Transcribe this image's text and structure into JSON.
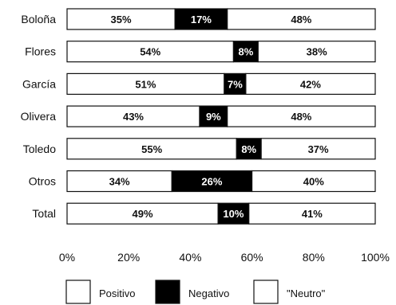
{
  "chart_data": {
    "type": "bar",
    "stacked": true,
    "orientation": "horizontal",
    "percent_stacked": true,
    "categories": [
      "Boloña",
      "Flores",
      "García",
      "Olivera",
      "Toledo",
      "Otros",
      "Total"
    ],
    "category_labels": [
      "Boloña",
      "Flores",
      "García",
      "Olivera",
      "Toledo",
      "Otros",
      "Total"
    ],
    "series": [
      {
        "name": "Positivo",
        "color": "#ffffff",
        "values": [
          35,
          54,
          51,
          43,
          55,
          34,
          49
        ],
        "labels": [
          "35%",
          "54%",
          "51%",
          "43%",
          "55%",
          "34%",
          "49%"
        ]
      },
      {
        "name": "Negativo",
        "color": "#000000",
        "values": [
          17,
          8,
          7,
          9,
          8,
          26,
          10
        ],
        "labels": [
          "17%",
          "8%",
          "7%",
          "9%",
          "8%",
          "26%",
          "10%"
        ]
      },
      {
        "name": "\"Neutro\"",
        "color": "#ffffff",
        "values": [
          48,
          38,
          42,
          48,
          37,
          40,
          41
        ],
        "labels": [
          "48%",
          "38%",
          "42%",
          "48%",
          "37%",
          "40%",
          "41%"
        ]
      }
    ],
    "xticks": [
      "0%",
      "20%",
      "40%",
      "60%",
      "80%",
      "100%"
    ],
    "xlim": [
      0,
      100
    ],
    "title": "",
    "xlabel": "",
    "ylabel": "",
    "grid": false,
    "legend_position": "bottom"
  }
}
